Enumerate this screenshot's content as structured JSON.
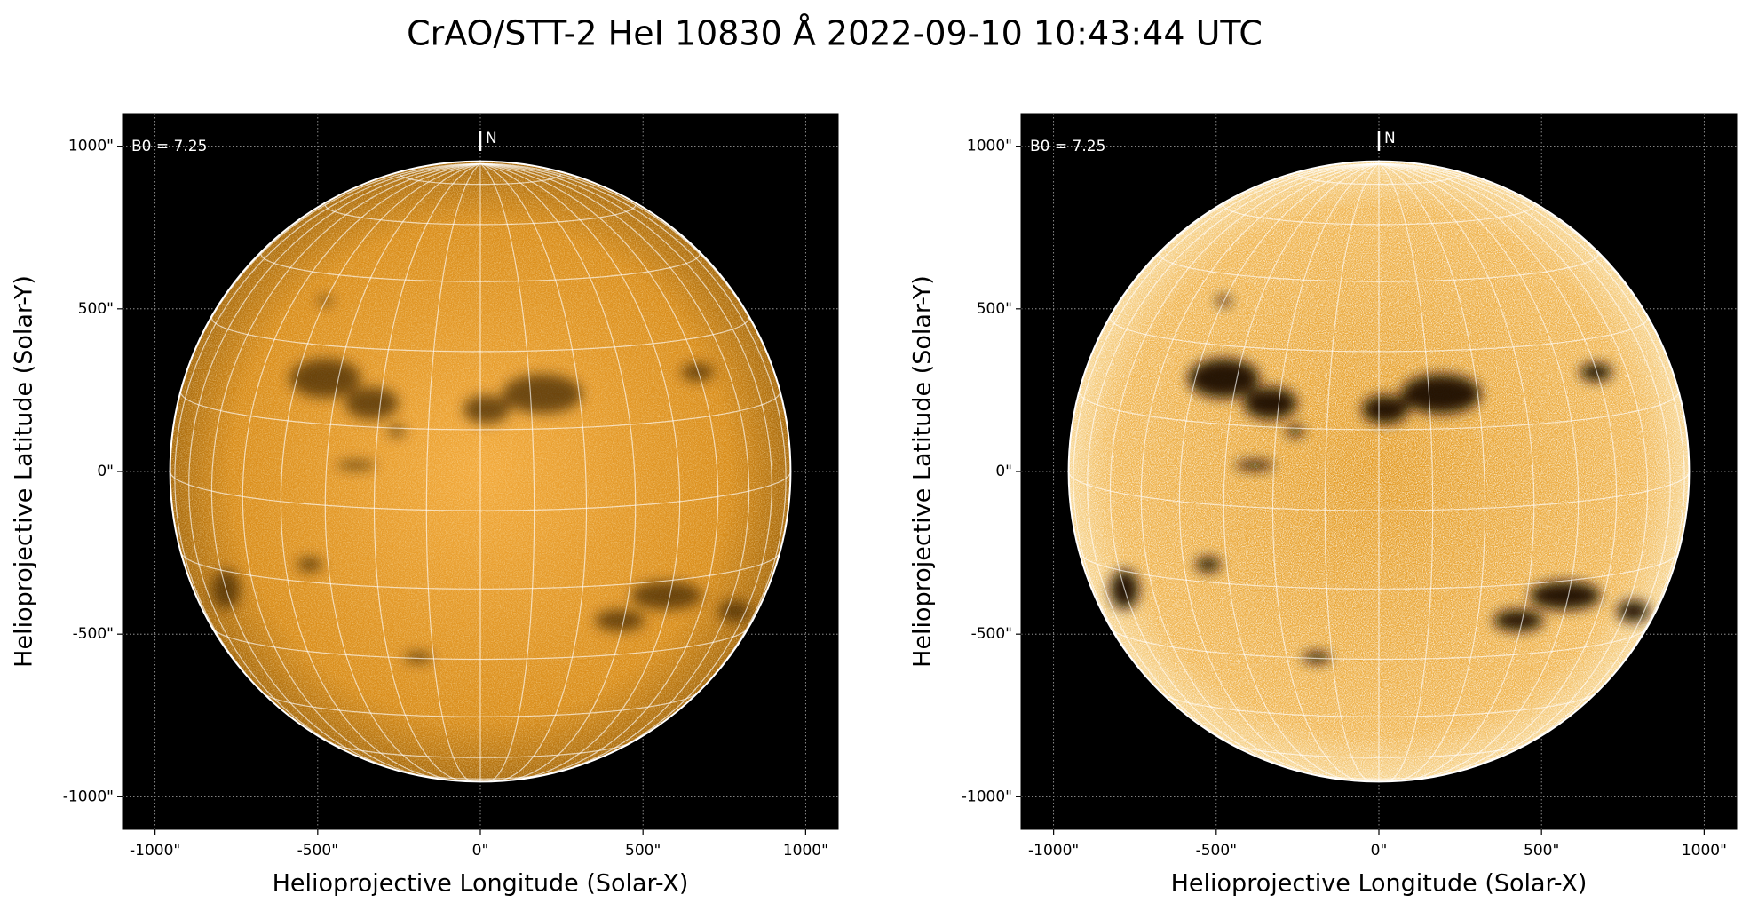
{
  "title": "CrAO/STT-2 HeI 10830 Å 2022-09-10 10:43:44 UTC",
  "chart_data": [
    {
      "type": "image",
      "xlabel": "Helioprojective Longitude (Solar-X)",
      "ylabel": "Helioprojective Latitude (Solar-Y)",
      "xlim": [
        -1100,
        1100
      ],
      "ylim": [
        -1100,
        1100
      ],
      "xticks": [
        {
          "value": -1000,
          "label": "-1000\""
        },
        {
          "value": -500,
          "label": "-500\""
        },
        {
          "value": 0,
          "label": "0\""
        },
        {
          "value": 500,
          "label": "500\""
        },
        {
          "value": 1000,
          "label": "1000\""
        }
      ],
      "yticks": [
        {
          "value": -1000,
          "label": "-1000\""
        },
        {
          "value": -500,
          "label": "-500\""
        },
        {
          "value": 0,
          "label": "0\""
        },
        {
          "value": 500,
          "label": "500\""
        },
        {
          "value": 1000,
          "label": "1000\""
        }
      ],
      "grid": true,
      "annotations": [
        "B0 = 7.25",
        "N"
      ],
      "contrast": "normal"
    },
    {
      "type": "image",
      "xlabel": "Helioprojective Longitude (Solar-X)",
      "ylabel": "Helioprojective Latitude (Solar-Y)",
      "xlim": [
        -1100,
        1100
      ],
      "ylim": [
        -1100,
        1100
      ],
      "xticks": [
        {
          "value": -1000,
          "label": "-1000\""
        },
        {
          "value": -500,
          "label": "-500\""
        },
        {
          "value": 0,
          "label": "0\""
        },
        {
          "value": 500,
          "label": "500\""
        },
        {
          "value": 1000,
          "label": "1000\""
        }
      ],
      "yticks": [
        {
          "value": -1000,
          "label": "-1000\""
        },
        {
          "value": -500,
          "label": "-500\""
        },
        {
          "value": 0,
          "label": "0\""
        },
        {
          "value": 500,
          "label": "500\""
        },
        {
          "value": 1000,
          "label": "1000\""
        }
      ],
      "grid": true,
      "annotations": [
        "B0 = 7.25",
        "N"
      ],
      "contrast": "enhanced"
    }
  ]
}
